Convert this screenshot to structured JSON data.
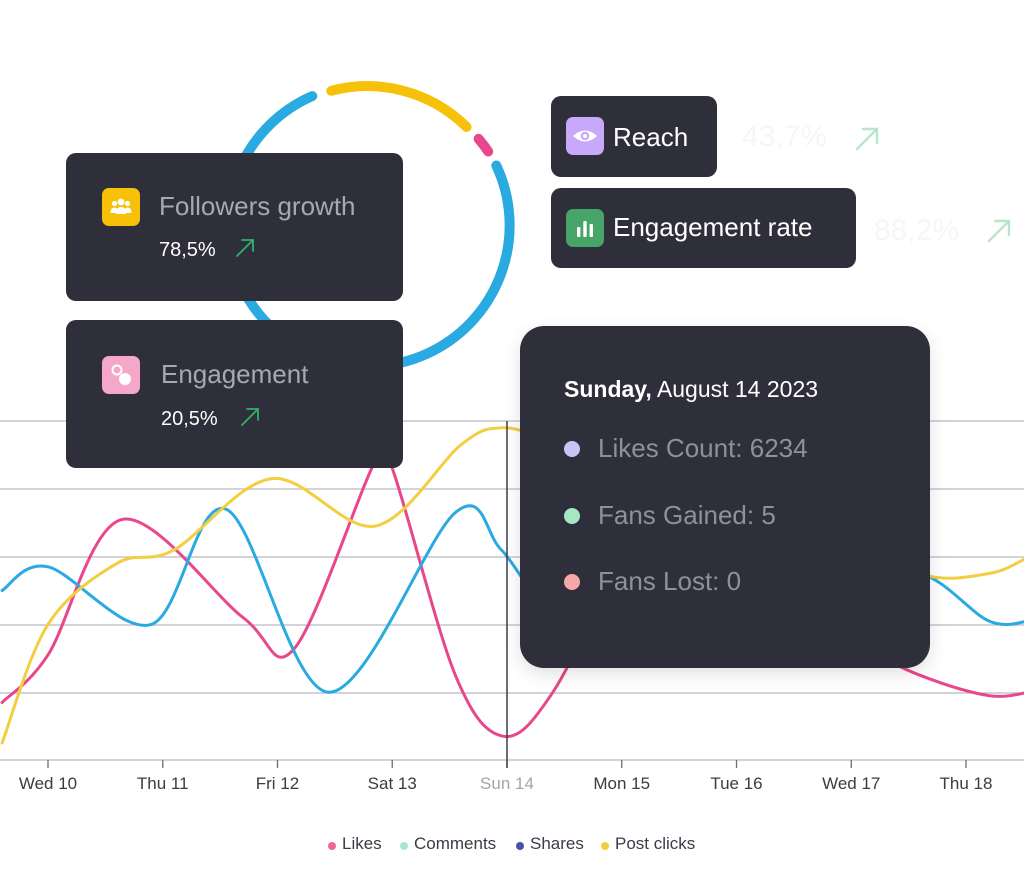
{
  "cards": {
    "followers": {
      "title": "Followers growth",
      "value": "78,5%",
      "icon": "people-icon",
      "icon_color": "#f6c108",
      "title_color": "#a8a9b0",
      "arrow_color": "#2fb36a"
    },
    "engagement": {
      "title": "Engagement",
      "value": "20,5%",
      "icon": "bubbles-icon",
      "icon_color": "#f4a7c9",
      "title_color": "#a8a9b0",
      "arrow_color": "#2fb36a"
    },
    "reach": {
      "title": "Reach",
      "value": "43,7%",
      "icon": "eye-icon",
      "icon_color": "#c8a8f8",
      "title_color": "#ffffff",
      "arrow_color": "#b8e6cb"
    },
    "engagement_rate": {
      "title": "Engagement rate",
      "value": "88,2%",
      "icon": "bar-chart-icon",
      "icon_color": "#47a56a",
      "title_color": "#ffffff",
      "arrow_color": "#b8e6cb"
    }
  },
  "tooltip": {
    "day": "Sunday,",
    "date": "August 14  2023",
    "rows": [
      {
        "label": "Likes Count: 6234",
        "color": "#c8c4f5"
      },
      {
        "label": "Fans Gained: 5",
        "color": "#a6e6c4"
      },
      {
        "label": "Fans Lost: 0",
        "color": "#f6a8a8"
      }
    ]
  },
  "legend": [
    {
      "label": "Likes",
      "color": "#ec6a8d"
    },
    {
      "label": "Comments",
      "color": "#a9e7cd"
    },
    {
      "label": "Shares",
      "color": "#4b50a8"
    },
    {
      "label": "Post clicks",
      "color": "#f3ce40"
    }
  ],
  "ring": {
    "colors": {
      "blue": "#29aae1",
      "yellow": "#f6c108",
      "pink": "#e8478b"
    }
  },
  "chart_data": {
    "type": "line",
    "categories": [
      "Wed 10",
      "Thu 11",
      "Fri 12",
      "Sat 13",
      "Sun 14",
      "Mon 15",
      "Tue 16",
      "Wed 17",
      "Thu 18"
    ],
    "highlighted_category": "Sun 14",
    "grid": true,
    "series": [
      {
        "color": "#e8478b",
        "points": [
          [
            -0.4,
            0.17
          ],
          [
            0.0,
            0.31
          ],
          [
            0.65,
            0.71
          ],
          [
            1.7,
            0.42
          ],
          [
            2.15,
            0.33
          ],
          [
            2.85,
            0.88
          ],
          [
            3.0,
            0.86
          ],
          [
            3.55,
            0.25
          ],
          [
            3.97,
            0.07
          ],
          [
            4.4,
            0.2
          ],
          [
            5.0,
            0.59
          ],
          [
            5.2,
            0.62
          ],
          [
            6.9,
            0.36
          ],
          [
            7.6,
            0.25
          ],
          [
            8.2,
            0.19
          ],
          [
            8.55,
            0.2
          ]
        ]
      },
      {
        "color": "#29aae1",
        "points": [
          [
            -0.4,
            0.5
          ],
          [
            0.0,
            0.57
          ],
          [
            0.9,
            0.4
          ],
          [
            1.55,
            0.74
          ],
          [
            2.45,
            0.2
          ],
          [
            3.55,
            0.73
          ],
          [
            3.95,
            0.62
          ],
          [
            4.4,
            0.45
          ],
          [
            5.0,
            0.57
          ],
          [
            5.2,
            0.62
          ],
          [
            6.9,
            0.51
          ],
          [
            7.6,
            0.55
          ],
          [
            8.2,
            0.41
          ],
          [
            8.55,
            0.41
          ]
        ]
      },
      {
        "color": "#f3ce40",
        "points": [
          [
            -0.4,
            0.05
          ],
          [
            0.0,
            0.4
          ],
          [
            0.6,
            0.58
          ],
          [
            1.1,
            0.62
          ],
          [
            1.95,
            0.83
          ],
          [
            2.85,
            0.69
          ],
          [
            3.6,
            0.93
          ],
          [
            3.95,
            0.98
          ],
          [
            4.4,
            0.95
          ],
          [
            5.0,
            0.94
          ],
          [
            6.9,
            0.71
          ],
          [
            7.6,
            0.55
          ],
          [
            8.2,
            0.55
          ],
          [
            8.55,
            0.6
          ]
        ]
      }
    ]
  }
}
